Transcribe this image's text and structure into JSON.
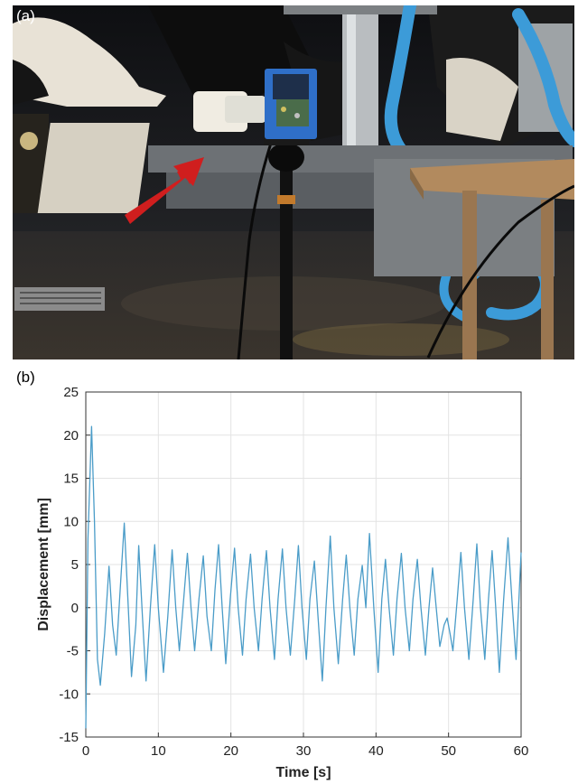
{
  "panel_a": {
    "label": "(a)",
    "description_icons": [
      "red-arrow-icon"
    ],
    "colors": {
      "arrow": "#d01e1e",
      "sensor_box": "#2f6fc8",
      "hoses": "#3c9bd8"
    }
  },
  "panel_b": {
    "label": "(b)"
  },
  "chart_data": {
    "type": "line",
    "title": "",
    "xlabel": "Time [s]",
    "ylabel": "Displacement [mm]",
    "xlim": [
      0,
      60
    ],
    "ylim": [
      -15,
      25
    ],
    "xticks": [
      0,
      10,
      20,
      30,
      40,
      50,
      60
    ],
    "yticks": [
      -15,
      -10,
      -5,
      0,
      5,
      10,
      15,
      20,
      25
    ],
    "grid": true,
    "line_color": "#4a9cc8",
    "series": [
      {
        "values": [
          [
            0,
            -14
          ],
          [
            0.3,
            8
          ],
          [
            0.8,
            21
          ],
          [
            1.2,
            10
          ],
          [
            1.6,
            -6
          ],
          [
            2.0,
            -9
          ],
          [
            2.6,
            -3
          ],
          [
            3.2,
            4.8
          ],
          [
            3.7,
            -2
          ],
          [
            4.2,
            -5.5
          ],
          [
            4.8,
            3
          ],
          [
            5.3,
            9.8
          ],
          [
            5.8,
            1
          ],
          [
            6.3,
            -8
          ],
          [
            6.9,
            -2
          ],
          [
            7.3,
            7.2
          ],
          [
            7.8,
            -1
          ],
          [
            8.3,
            -8.5
          ],
          [
            8.9,
            0
          ],
          [
            9.5,
            7.3
          ],
          [
            10.0,
            0
          ],
          [
            10.7,
            -7.5
          ],
          [
            11.3,
            -1
          ],
          [
            11.9,
            6.7
          ],
          [
            12.4,
            0
          ],
          [
            12.9,
            -5
          ],
          [
            13.5,
            1
          ],
          [
            14.0,
            6.3
          ],
          [
            14.5,
            0
          ],
          [
            15.0,
            -5
          ],
          [
            15.6,
            1
          ],
          [
            16.2,
            6
          ],
          [
            16.7,
            -1
          ],
          [
            17.3,
            -5
          ],
          [
            17.8,
            2
          ],
          [
            18.3,
            7.3
          ],
          [
            18.8,
            0
          ],
          [
            19.3,
            -6.5
          ],
          [
            19.9,
            1
          ],
          [
            20.5,
            6.9
          ],
          [
            21.0,
            0
          ],
          [
            21.6,
            -5.5
          ],
          [
            22.1,
            1
          ],
          [
            22.7,
            6.2
          ],
          [
            23.2,
            0
          ],
          [
            23.8,
            -5
          ],
          [
            24.3,
            1
          ],
          [
            24.9,
            6.6
          ],
          [
            25.4,
            0
          ],
          [
            26.0,
            -6
          ],
          [
            26.5,
            1
          ],
          [
            27.1,
            6.8
          ],
          [
            27.6,
            0
          ],
          [
            28.2,
            -5.5
          ],
          [
            28.8,
            1
          ],
          [
            29.3,
            7.2
          ],
          [
            29.8,
            0
          ],
          [
            30.4,
            -6
          ],
          [
            30.9,
            1
          ],
          [
            31.5,
            5.4
          ],
          [
            32.0,
            -1
          ],
          [
            32.6,
            -8.5
          ],
          [
            33.1,
            0
          ],
          [
            33.7,
            8.3
          ],
          [
            34.2,
            0
          ],
          [
            34.8,
            -6.5
          ],
          [
            35.4,
            1
          ],
          [
            35.9,
            6.1
          ],
          [
            36.4,
            0
          ],
          [
            37.0,
            -5.5
          ],
          [
            37.5,
            1
          ],
          [
            38.1,
            4.9
          ],
          [
            38.6,
            0
          ],
          [
            39.1,
            8.6
          ],
          [
            39.7,
            0
          ],
          [
            40.3,
            -7.5
          ],
          [
            40.8,
            1
          ],
          [
            41.3,
            5.6
          ],
          [
            41.8,
            0
          ],
          [
            42.4,
            -5.5
          ],
          [
            42.9,
            1
          ],
          [
            43.5,
            6.3
          ],
          [
            44.0,
            0
          ],
          [
            44.6,
            -5
          ],
          [
            45.1,
            1
          ],
          [
            45.7,
            5.6
          ],
          [
            46.2,
            0
          ],
          [
            46.8,
            -5.5
          ],
          [
            47.3,
            0
          ],
          [
            47.8,
            4.6
          ],
          [
            48.3,
            0
          ],
          [
            48.8,
            -4.5
          ],
          [
            49.4,
            -2
          ],
          [
            49.8,
            -1.2
          ],
          [
            50.2,
            -3
          ],
          [
            50.6,
            -5
          ],
          [
            51.2,
            1
          ],
          [
            51.7,
            6.4
          ],
          [
            52.2,
            0
          ],
          [
            52.8,
            -6
          ],
          [
            53.4,
            1
          ],
          [
            53.9,
            7.4
          ],
          [
            54.4,
            0
          ],
          [
            55.0,
            -6
          ],
          [
            55.5,
            1
          ],
          [
            56.0,
            6.6
          ],
          [
            56.5,
            0
          ],
          [
            57.0,
            -7.5
          ],
          [
            57.6,
            1
          ],
          [
            58.2,
            8.1
          ],
          [
            58.8,
            0
          ],
          [
            59.3,
            -6
          ],
          [
            59.7,
            1
          ],
          [
            60.0,
            6.4
          ]
        ]
      }
    ]
  }
}
